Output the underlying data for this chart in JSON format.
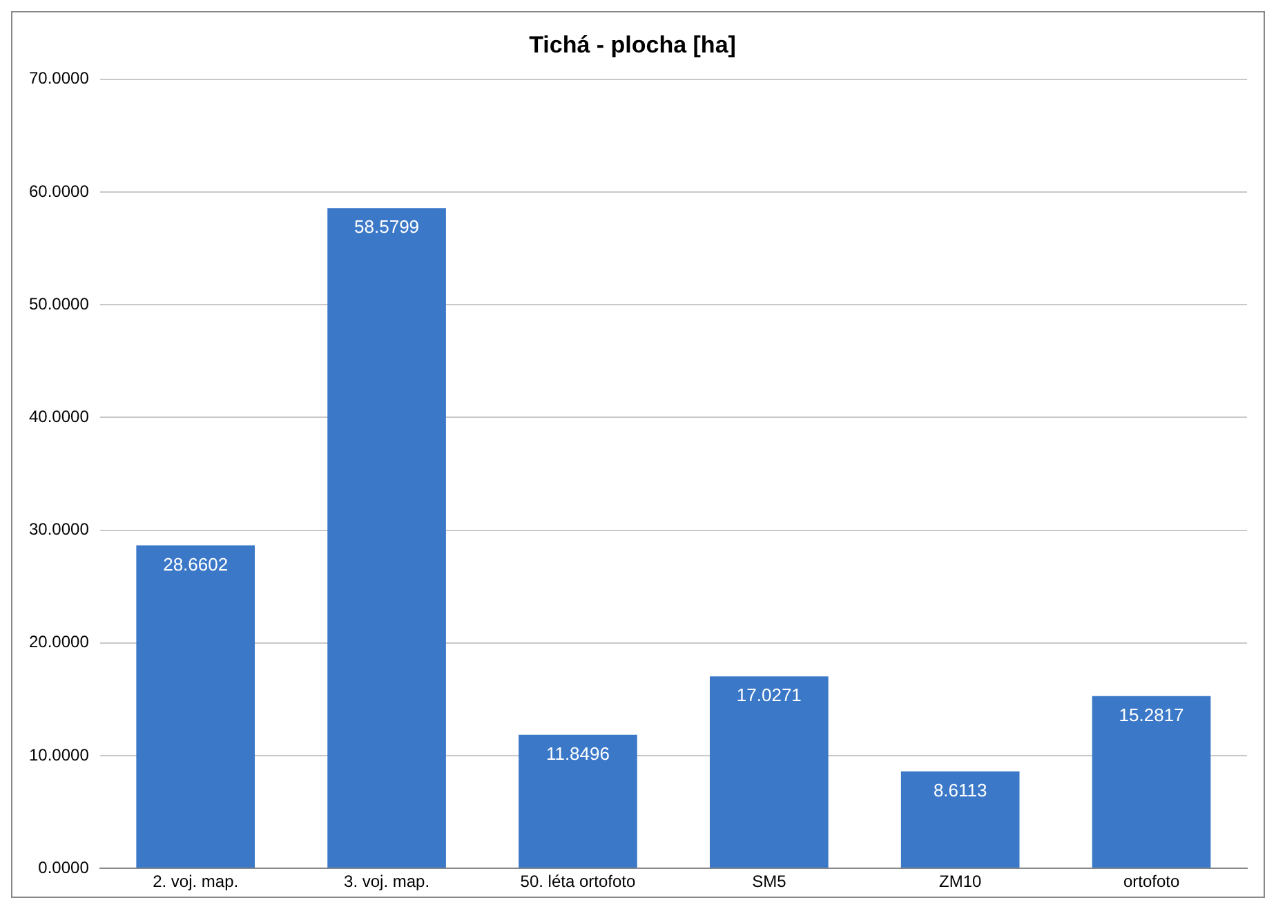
{
  "chart_data": {
    "type": "bar",
    "title": "Tichá - plocha [ha]",
    "categories": [
      "2. voj. map.",
      "3. voj. map.",
      "50. léta ortofoto",
      "SM5",
      "ZM10",
      "ortofoto"
    ],
    "values": [
      28.6602,
      58.5799,
      11.8496,
      17.0271,
      8.6113,
      15.2817
    ],
    "color": "#3b78c8",
    "ylim": [
      0,
      70
    ],
    "yticks": [
      {
        "value": 0,
        "label": "0.0000"
      },
      {
        "value": 10,
        "label": "10.0000"
      },
      {
        "value": 20,
        "label": "20.0000"
      },
      {
        "value": 30,
        "label": "30.0000"
      },
      {
        "value": 40,
        "label": "40.0000"
      },
      {
        "value": 50,
        "label": "50.0000"
      },
      {
        "value": 60,
        "label": "60.0000"
      },
      {
        "value": 70,
        "label": "70.0000"
      }
    ],
    "grid": "y",
    "data_labels": true
  }
}
